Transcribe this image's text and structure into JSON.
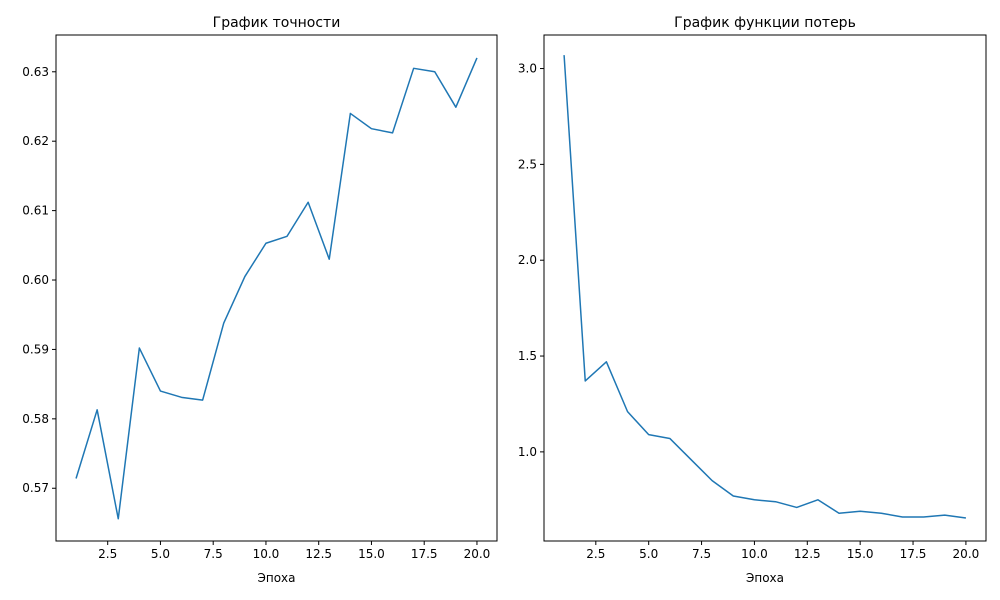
{
  "chart_data": [
    {
      "type": "line",
      "title": "График точности",
      "xlabel": "Эпоха",
      "ylabel": "",
      "xlim": [
        0.05,
        20.95
      ],
      "ylim": [
        0.5624,
        0.6353
      ],
      "xticks": [
        2.5,
        5.0,
        7.5,
        10.0,
        12.5,
        15.0,
        17.5,
        20.0
      ],
      "xtick_labels": [
        "2.5",
        "5.0",
        "7.5",
        "10.0",
        "12.5",
        "15.0",
        "17.5",
        "20.0"
      ],
      "yticks": [
        0.57,
        0.58,
        0.59,
        0.6,
        0.61,
        0.62,
        0.63
      ],
      "ytick_labels": [
        "0.57",
        "0.58",
        "0.59",
        "0.60",
        "0.61",
        "0.62",
        "0.63"
      ],
      "grid": false,
      "color": "#1f77b4",
      "x": [
        1,
        2,
        3,
        4,
        5,
        6,
        7,
        8,
        9,
        10,
        11,
        12,
        13,
        14,
        15,
        16,
        17,
        18,
        19,
        20
      ],
      "values": [
        0.5714,
        0.5813,
        0.5656,
        0.5902,
        0.584,
        0.5831,
        0.5827,
        0.5938,
        0.6005,
        0.6053,
        0.6063,
        0.6112,
        0.603,
        0.624,
        0.6218,
        0.6212,
        0.6305,
        0.63,
        0.6249,
        0.632
      ]
    },
    {
      "type": "line",
      "title": "График функции потерь",
      "xlabel": "Эпоха",
      "ylabel": "",
      "xlim": [
        0.05,
        20.95
      ],
      "ylim": [
        0.535,
        3.175
      ],
      "xticks": [
        2.5,
        5.0,
        7.5,
        10.0,
        12.5,
        15.0,
        17.5,
        20.0
      ],
      "xtick_labels": [
        "2.5",
        "5.0",
        "7.5",
        "10.0",
        "12.5",
        "15.0",
        "17.5",
        "20.0"
      ],
      "yticks": [
        1.0,
        1.5,
        2.0,
        2.5,
        3.0
      ],
      "ytick_labels": [
        "1.0",
        "1.5",
        "2.0",
        "2.5",
        "3.0"
      ],
      "grid": false,
      "color": "#1f77b4",
      "x": [
        1,
        2,
        3,
        4,
        5,
        6,
        7,
        8,
        9,
        10,
        11,
        12,
        13,
        14,
        15,
        16,
        17,
        18,
        19,
        20
      ],
      "values": [
        3.07,
        1.37,
        1.47,
        1.21,
        1.09,
        1.07,
        0.96,
        0.85,
        0.77,
        0.75,
        0.74,
        0.71,
        0.75,
        0.68,
        0.69,
        0.68,
        0.66,
        0.66,
        0.67,
        0.655
      ]
    }
  ]
}
